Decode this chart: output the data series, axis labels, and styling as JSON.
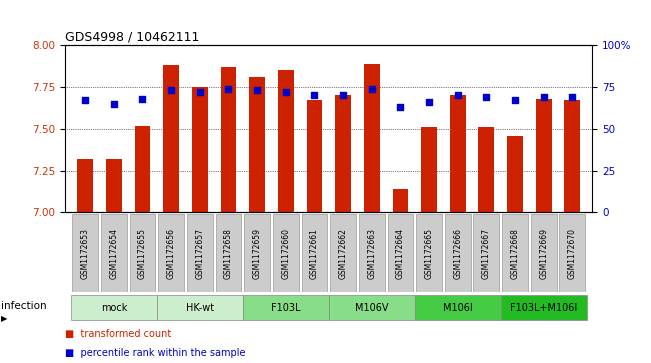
{
  "title": "GDS4998 / 10462111",
  "samples": [
    "GSM1172653",
    "GSM1172654",
    "GSM1172655",
    "GSM1172656",
    "GSM1172657",
    "GSM1172658",
    "GSM1172659",
    "GSM1172660",
    "GSM1172661",
    "GSM1172662",
    "GSM1172663",
    "GSM1172664",
    "GSM1172665",
    "GSM1172666",
    "GSM1172667",
    "GSM1172668",
    "GSM1172669",
    "GSM1172670"
  ],
  "bar_values": [
    7.32,
    7.32,
    7.52,
    7.88,
    7.75,
    7.87,
    7.81,
    7.85,
    7.67,
    7.7,
    7.89,
    7.14,
    7.51,
    7.7,
    7.51,
    7.46,
    7.68,
    7.67
  ],
  "percentile_values": [
    67,
    65,
    68,
    73,
    72,
    74,
    73,
    72,
    70,
    70,
    74,
    63,
    66,
    70,
    69,
    67,
    69,
    69
  ],
  "groups": [
    {
      "label": "mock",
      "start": 0,
      "end": 2,
      "color": "#cceecc"
    },
    {
      "label": "HK-wt",
      "start": 3,
      "end": 5,
      "color": "#cceecc"
    },
    {
      "label": "F103L",
      "start": 6,
      "end": 8,
      "color": "#88dd88"
    },
    {
      "label": "M106V",
      "start": 9,
      "end": 11,
      "color": "#88dd88"
    },
    {
      "label": "M106I",
      "start": 12,
      "end": 14,
      "color": "#44cc44"
    },
    {
      "label": "F103L+M106I",
      "start": 15,
      "end": 17,
      "color": "#22bb22"
    }
  ],
  "ylim_left": [
    7.0,
    8.0
  ],
  "ylim_right": [
    0,
    100
  ],
  "yticks_left": [
    7.0,
    7.25,
    7.5,
    7.75,
    8.0
  ],
  "yticks_right": [
    0,
    25,
    50,
    75,
    100
  ],
  "bar_color": "#cc2200",
  "dot_color": "#0000cc",
  "bar_bottom": 7.0,
  "infection_label": "infection",
  "legend_bar_label": "transformed count",
  "legend_dot_label": "percentile rank within the sample",
  "gridline_vals": [
    7.25,
    7.5,
    7.75
  ]
}
